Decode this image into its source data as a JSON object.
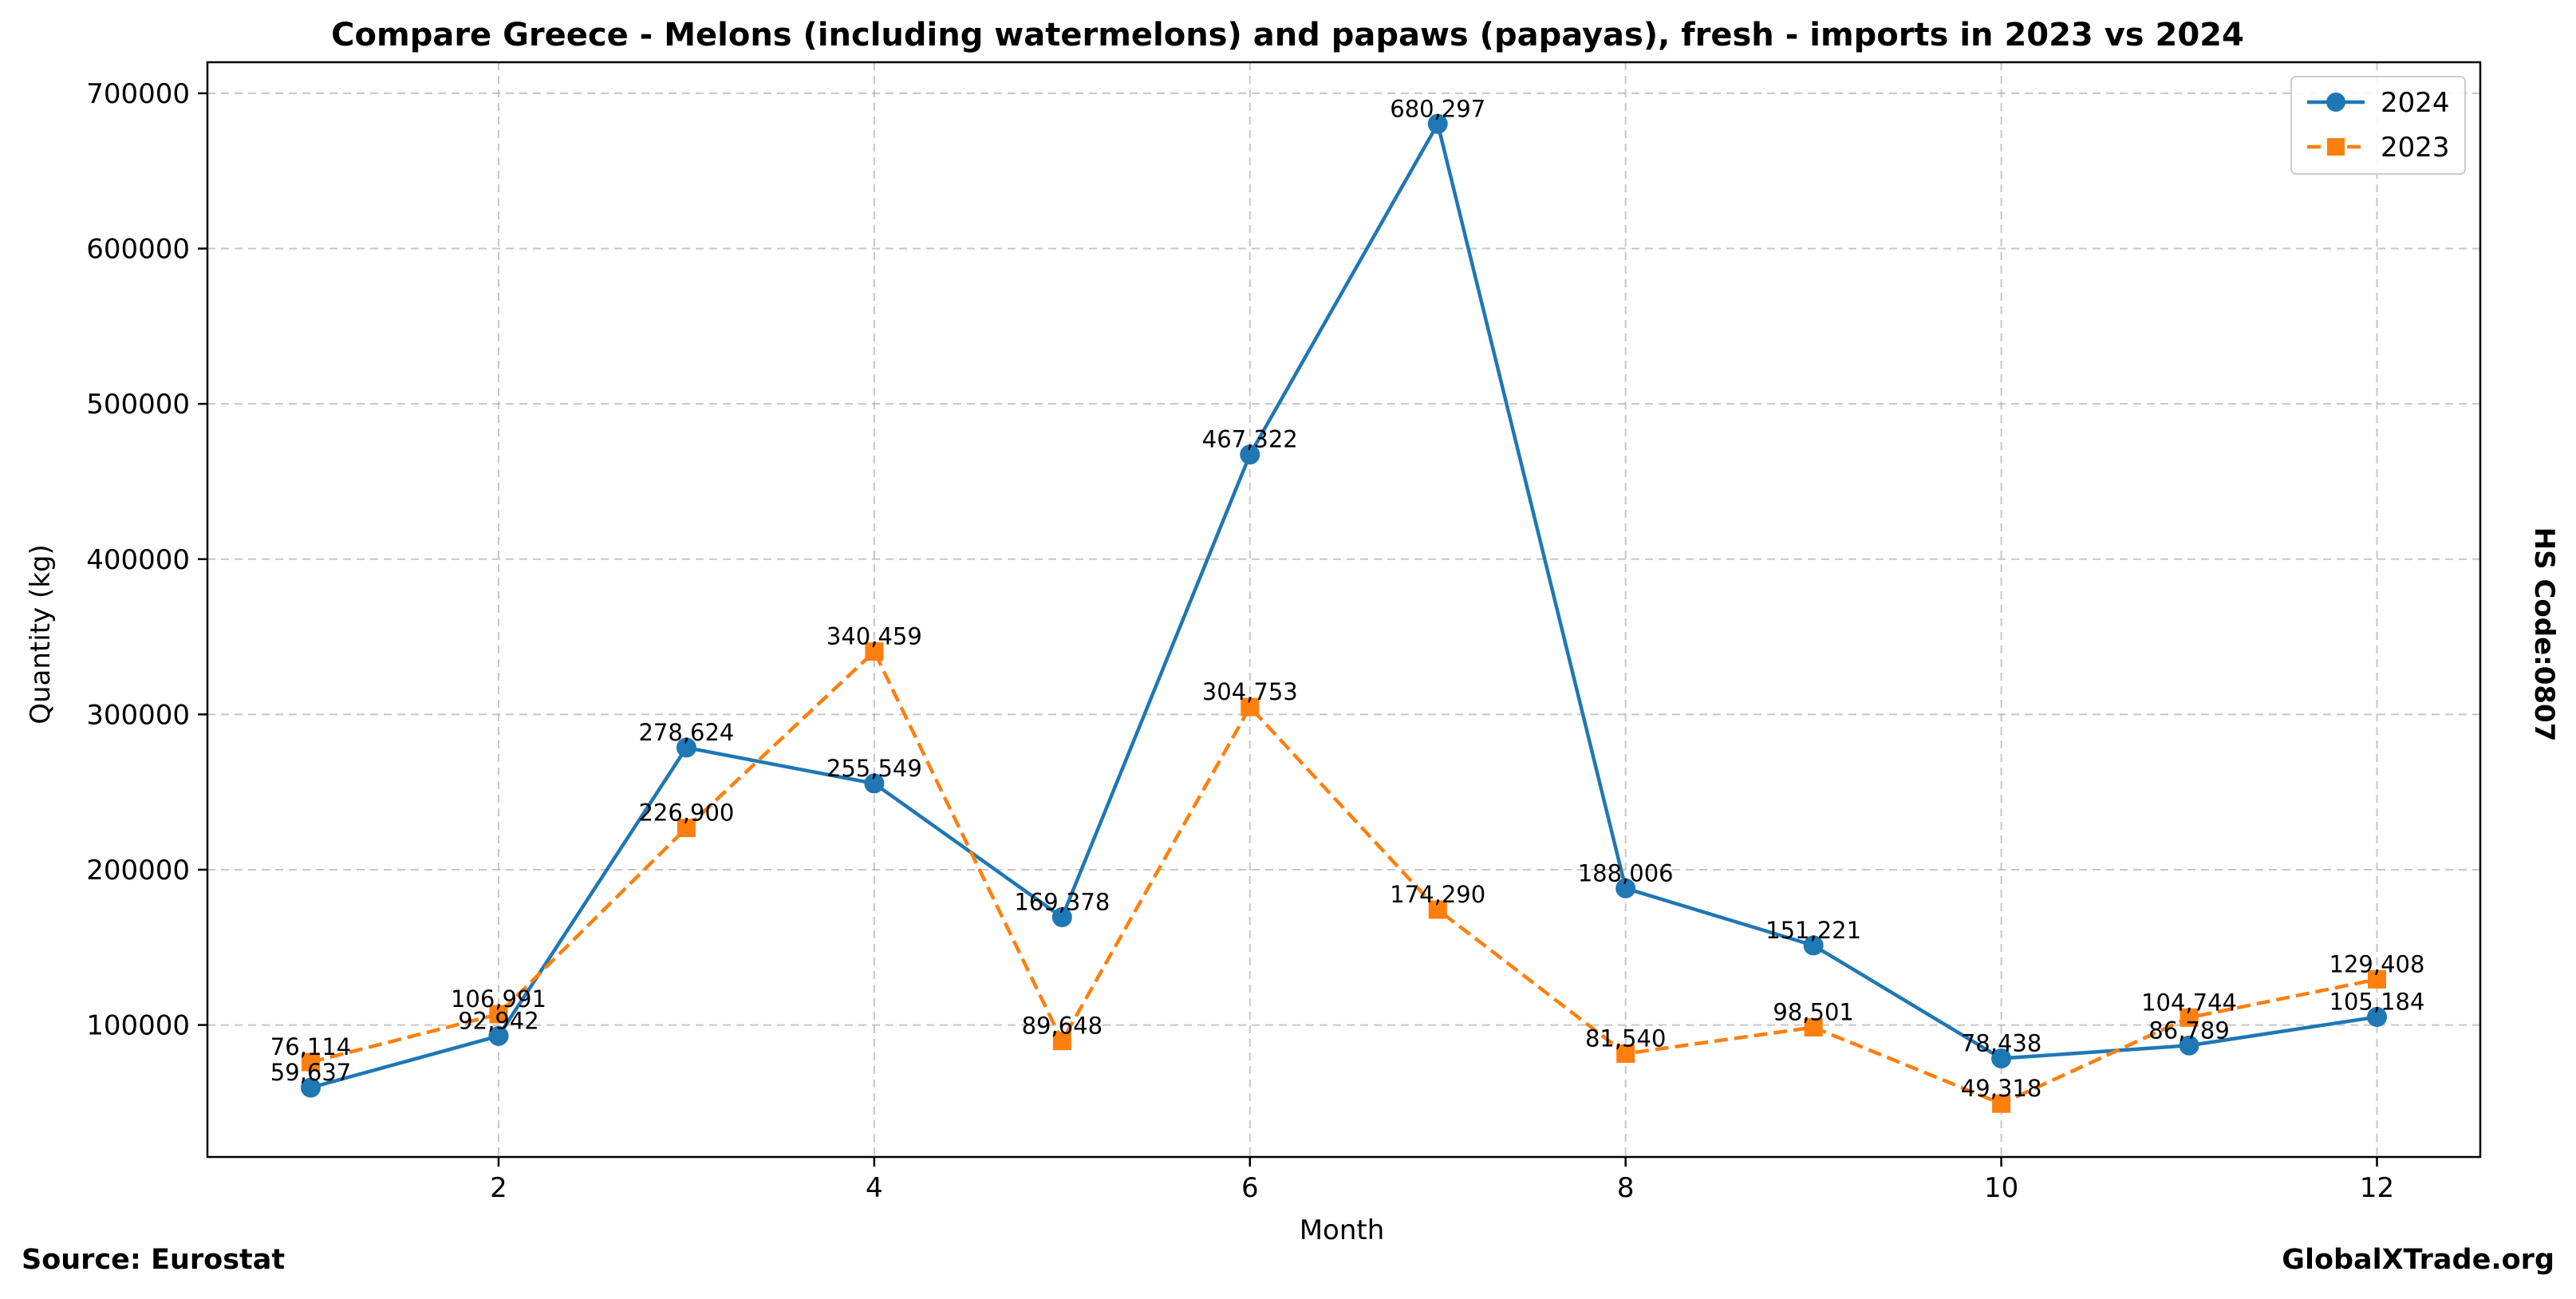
{
  "chart_data": {
    "type": "line",
    "title": "Compare Greece - Melons (including watermelons) and papaws (papayas), fresh - imports in 2023 vs 2024",
    "xlabel": "Month",
    "ylabel": "Quantity (kg)",
    "x": [
      1,
      2,
      3,
      4,
      5,
      6,
      7,
      8,
      9,
      10,
      11,
      12
    ],
    "xticks": [
      2,
      4,
      6,
      8,
      10,
      12
    ],
    "xlim": [
      0.45,
      12.55
    ],
    "yticks": [
      100000,
      200000,
      300000,
      400000,
      500000,
      600000,
      700000
    ],
    "ylim": [
      15000,
      720000
    ],
    "grid": true,
    "legend_position": "top-right",
    "series": [
      {
        "name": "2024",
        "color": "#1f77b4",
        "line_style": "solid",
        "marker": "circle",
        "values": [
          59637,
          92942,
          278624,
          255549,
          169378,
          467322,
          680297,
          188006,
          151221,
          78438,
          86789,
          105184
        ],
        "labels": [
          "59,637",
          "92,942",
          "278,624",
          "255,549",
          "169,378",
          "467,322",
          "680,297",
          "188,006",
          "151,221",
          "78,438",
          "86,789",
          "105,184"
        ]
      },
      {
        "name": "2023",
        "color": "#ff7f0e",
        "line_style": "dashed",
        "marker": "square",
        "values": [
          76114,
          106991,
          226900,
          340459,
          89648,
          304753,
          174290,
          81540,
          98501,
          49318,
          104744,
          129408
        ],
        "labels": [
          "76,114",
          "106,991",
          "226,900",
          "340,459",
          "89,648",
          "304,753",
          "174,290",
          "81,540",
          "98,501",
          "49,318",
          "104,744",
          "129,408"
        ]
      }
    ]
  },
  "footer": {
    "source": "Source: Eurostat",
    "site": "GlobalXTrade.org"
  },
  "side_note": "HS Code:0807"
}
